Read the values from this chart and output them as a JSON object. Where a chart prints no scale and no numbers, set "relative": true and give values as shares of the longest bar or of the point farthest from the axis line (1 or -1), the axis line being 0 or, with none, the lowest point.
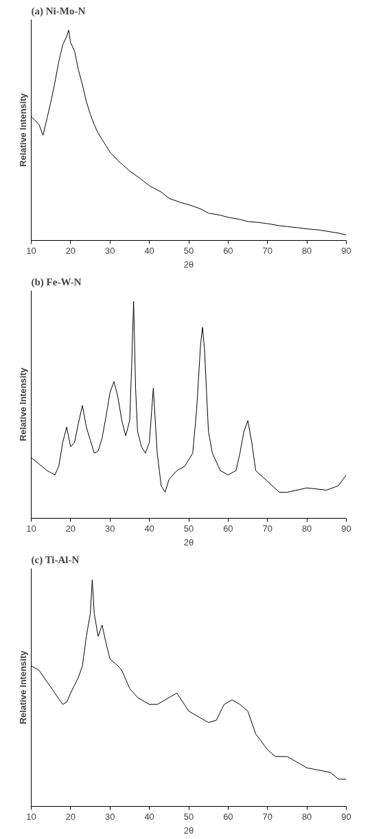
{
  "chart_data": [
    {
      "type": "line",
      "title": "(a) Ni-Mo-N",
      "xlabel": "2θ",
      "ylabel": "Relative Intensity",
      "relative": true,
      "xlim": [
        10,
        90
      ],
      "xticks": [
        10,
        20,
        30,
        40,
        50,
        60,
        70,
        80,
        90
      ],
      "grid": false,
      "marker": "none",
      "line_style": "solid",
      "x": [
        10,
        11,
        12,
        13,
        14,
        15,
        16,
        17,
        18,
        19,
        19.5,
        20,
        21,
        22,
        23,
        24,
        25,
        26,
        27,
        28,
        29,
        30,
        32,
        35,
        38,
        40,
        43,
        45,
        48,
        50,
        53,
        55,
        58,
        60,
        63,
        65,
        68,
        70,
        73,
        75,
        78,
        80,
        83,
        85,
        88,
        90
      ],
      "series": [
        {
          "color": "#000000",
          "values": [
            0.59,
            0.57,
            0.55,
            0.5,
            0.58,
            0.66,
            0.75,
            0.85,
            0.93,
            0.97,
            1.0,
            0.94,
            0.9,
            0.81,
            0.74,
            0.66,
            0.6,
            0.55,
            0.51,
            0.48,
            0.45,
            0.42,
            0.38,
            0.33,
            0.29,
            0.26,
            0.23,
            0.2,
            0.18,
            0.17,
            0.15,
            0.13,
            0.12,
            0.11,
            0.1,
            0.09,
            0.085,
            0.08,
            0.07,
            0.066,
            0.06,
            0.055,
            0.05,
            0.044,
            0.035,
            0.026
          ]
        }
      ]
    },
    {
      "type": "line",
      "title": "(b) Fe-W-N",
      "xlabel": "2θ",
      "ylabel": "Relative Intensity",
      "relative": true,
      "xlim": [
        10,
        90
      ],
      "xticks": [
        10,
        20,
        30,
        40,
        50,
        60,
        70,
        80,
        90
      ],
      "grid": false,
      "marker": "none",
      "line_style": "solid",
      "x": [
        10,
        12,
        14,
        16,
        17,
        18,
        19,
        20,
        21,
        22,
        23,
        24,
        25,
        26,
        27,
        28,
        29,
        30,
        31,
        32,
        33,
        34,
        35,
        35.5,
        36,
        36.5,
        37,
        38,
        39,
        40,
        41,
        42,
        43,
        44,
        45,
        47,
        49,
        51,
        52,
        53,
        53.5,
        54,
        55,
        56,
        58,
        60,
        62,
        63,
        64,
        65,
        66,
        67,
        70,
        73,
        75,
        80,
        85,
        88,
        90
      ],
      "series": [
        {
          "color": "#000000",
          "values": [
            0.28,
            0.25,
            0.22,
            0.2,
            0.24,
            0.35,
            0.42,
            0.33,
            0.35,
            0.44,
            0.52,
            0.42,
            0.36,
            0.3,
            0.31,
            0.37,
            0.47,
            0.58,
            0.63,
            0.56,
            0.45,
            0.38,
            0.45,
            0.7,
            1.0,
            0.6,
            0.4,
            0.33,
            0.3,
            0.35,
            0.6,
            0.3,
            0.15,
            0.12,
            0.18,
            0.22,
            0.24,
            0.3,
            0.5,
            0.8,
            0.88,
            0.78,
            0.4,
            0.3,
            0.22,
            0.2,
            0.22,
            0.3,
            0.4,
            0.45,
            0.35,
            0.22,
            0.17,
            0.12,
            0.12,
            0.14,
            0.13,
            0.15,
            0.2
          ]
        }
      ]
    },
    {
      "type": "line",
      "title": "(c) Ti-Al-N",
      "xlabel": "2θ",
      "ylabel": "Relative Intensity",
      "relative": true,
      "xlim": [
        10,
        90
      ],
      "xticks": [
        10,
        20,
        30,
        40,
        50,
        60,
        70,
        80,
        90
      ],
      "grid": false,
      "marker": "none",
      "line_style": "solid",
      "x": [
        10,
        12,
        14,
        16,
        18,
        19,
        20,
        22,
        23,
        24,
        25,
        25.5,
        26,
        27,
        28,
        29,
        30,
        32,
        33,
        35,
        37,
        40,
        42,
        45,
        47,
        50,
        52,
        55,
        57,
        59,
        61,
        63,
        65,
        67,
        70,
        72,
        75,
        77,
        80,
        83,
        86,
        88,
        90
      ],
      "series": [
        {
          "color": "#000000",
          "values": [
            0.62,
            0.6,
            0.55,
            0.5,
            0.45,
            0.46,
            0.5,
            0.57,
            0.62,
            0.75,
            0.85,
            1.0,
            0.85,
            0.75,
            0.8,
            0.72,
            0.65,
            0.62,
            0.6,
            0.52,
            0.48,
            0.45,
            0.45,
            0.48,
            0.5,
            0.42,
            0.4,
            0.37,
            0.38,
            0.45,
            0.47,
            0.45,
            0.42,
            0.32,
            0.25,
            0.22,
            0.22,
            0.2,
            0.17,
            0.16,
            0.15,
            0.12,
            0.12
          ]
        }
      ]
    }
  ]
}
